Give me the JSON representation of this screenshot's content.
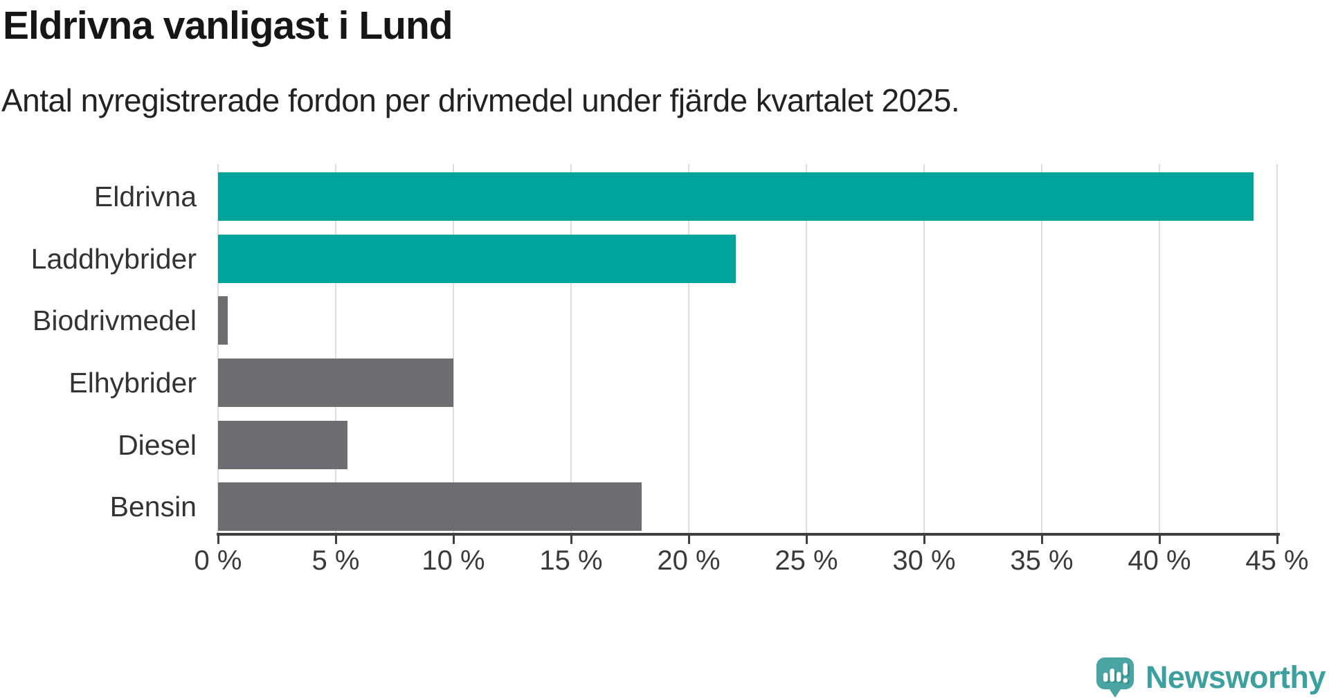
{
  "header": {
    "title": "Eldrivna vanligast i Lund",
    "subtitle": "Antal nyregistrerade fordon per drivmedel under fjärde kvartalet 2025."
  },
  "chart_data": {
    "type": "bar",
    "orientation": "horizontal",
    "title": "Eldrivna vanligast i Lund",
    "subtitle": "Antal nyregistrerade fordon per drivmedel under fjärde kvartalet 2025.",
    "categories": [
      "Eldrivna",
      "Laddhybrider",
      "Biodrivmedel",
      "Elhybrider",
      "Diesel",
      "Bensin"
    ],
    "values": [
      44,
      22,
      0.4,
      10,
      5.5,
      18
    ],
    "unit": "%",
    "bar_colors": [
      "#00a49b",
      "#00a49b",
      "#6d6d72",
      "#6d6d72",
      "#6d6d72",
      "#6d6d72"
    ],
    "xlim": [
      0,
      45
    ],
    "x_ticks": [
      0,
      5,
      10,
      15,
      20,
      25,
      30,
      35,
      40,
      45
    ],
    "x_tick_labels": [
      "0 %",
      "5 %",
      "10 %",
      "15 %",
      "20 %",
      "25 %",
      "30 %",
      "35 %",
      "40 %",
      "45 %"
    ],
    "grid": true,
    "legend_position": "none",
    "xlabel": "",
    "ylabel": ""
  },
  "colors": {
    "accent_teal": "#00a49b",
    "bar_gray": "#6d6d72",
    "grid": "#dedede",
    "axis": "#3f3f3f",
    "title_text": "#161616",
    "body_text": "#333333"
  },
  "branding": {
    "logo_text": "Newsworthy",
    "logo_text_color": "#3ba09e",
    "logo_icon": "newsworthy-pin-barchart-icon",
    "logo_icon_color": "#4aa5a2",
    "logo_icon_shade": "#35918e"
  }
}
